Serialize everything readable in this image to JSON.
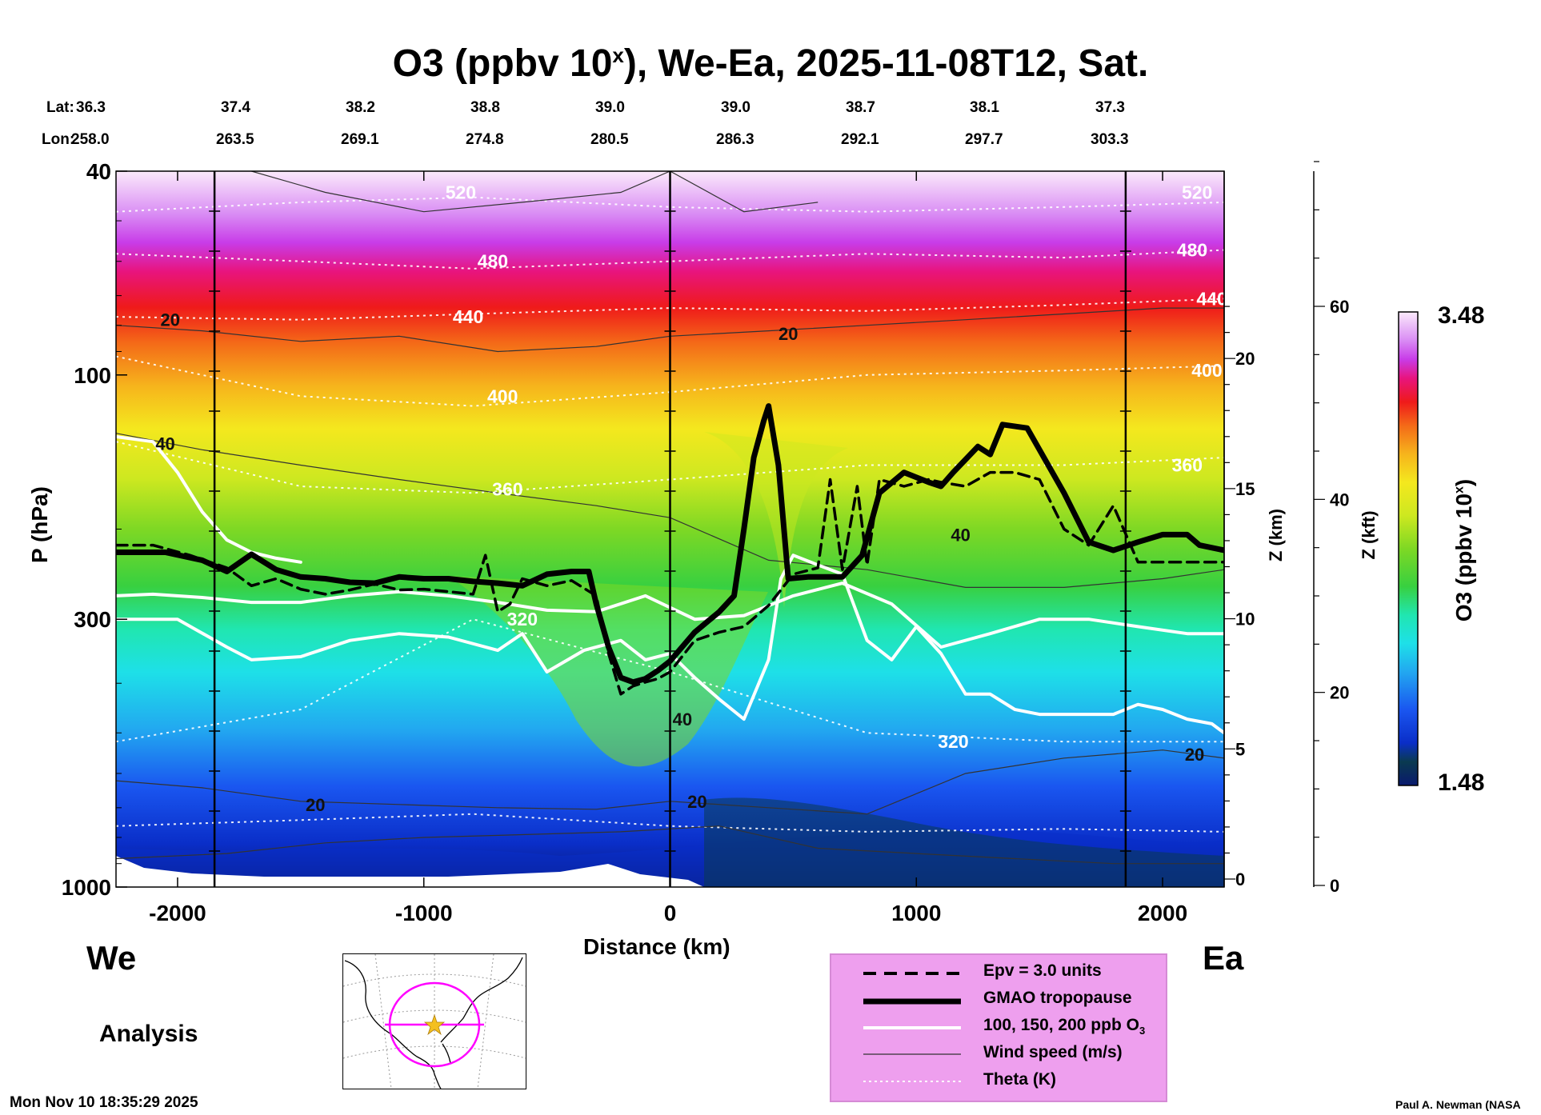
{
  "chart_data": {
    "type": "heatmap",
    "title": "O3 (ppbv 10",
    "title_sup": "x",
    "title_rest": "), We-Ea, 2025-11-08T12, Sat.",
    "xlabel": "Distance (km)",
    "ylabel": "P (hPa)",
    "y2label": "Z (km)",
    "y3label": "Z (kft)",
    "colorbar_label": "O3 (ppbv 10",
    "colorbar_label_sup": "x",
    "colorbar_label_end": ")",
    "colorbar_range": [
      1.48,
      3.48
    ],
    "colorbar_max_label": "3.48",
    "colorbar_min_label": "1.48",
    "xlim": [
      -2250,
      2250
    ],
    "ylim": [
      1000,
      40
    ],
    "x_ticks": [
      "-2000",
      "-1000",
      "0",
      "1000",
      "2000"
    ],
    "x_tick_values": [
      -2000,
      -1000,
      0,
      1000,
      2000
    ],
    "p_ticks": [
      "40",
      "100",
      "300",
      "1000"
    ],
    "p_tick_values": [
      40,
      100,
      300,
      1000
    ],
    "z_km_ticks": [
      "0",
      "5",
      "10",
      "15",
      "20"
    ],
    "z_km_values": [
      0,
      5,
      10,
      15,
      20
    ],
    "z_kft_ticks": [
      "0",
      "20",
      "40",
      "60"
    ],
    "z_kft_values": [
      0,
      20,
      40,
      60
    ],
    "lat_label": "Lat:",
    "lon_label": "Lon:",
    "lat": [
      "36.3",
      "37.4",
      "38.2",
      "38.8",
      "39.0",
      "39.0",
      "38.7",
      "38.1",
      "37.3"
    ],
    "lon": [
      "258.0",
      "263.5",
      "269.1",
      "274.8",
      "280.5",
      "286.3",
      "292.1",
      "297.7",
      "303.3"
    ],
    "vertical_markers_km": [
      -1850,
      0,
      1850
    ],
    "theta_labels": [
      {
        "text": "520",
        "x": -850,
        "p": 44
      },
      {
        "text": "480",
        "x": -720,
        "p": 60
      },
      {
        "text": "440",
        "x": -820,
        "p": 77
      },
      {
        "text": "400",
        "x": -680,
        "p": 110
      },
      {
        "text": "360",
        "x": -660,
        "p": 167
      },
      {
        "text": "320",
        "x": -600,
        "p": 300
      },
      {
        "text": "320",
        "x": 1150,
        "p": 520
      },
      {
        "text": "360",
        "x": 2100,
        "p": 150
      },
      {
        "text": "400",
        "x": 2180,
        "p": 98
      },
      {
        "text": "440",
        "x": 2200,
        "p": 71
      },
      {
        "text": "480",
        "x": 2120,
        "p": 57
      },
      {
        "text": "520",
        "x": 2140,
        "p": 44
      }
    ],
    "wind_labels": [
      {
        "text": "20",
        "x": -2030,
        "p": 78
      },
      {
        "text": "40",
        "x": -2050,
        "p": 136
      },
      {
        "text": "20",
        "x": 480,
        "p": 83
      },
      {
        "text": "40",
        "x": 1180,
        "p": 205
      },
      {
        "text": "40",
        "x": 50,
        "p": 470
      },
      {
        "text": "20",
        "x": -1440,
        "p": 690
      },
      {
        "text": "20",
        "x": 110,
        "p": 680
      },
      {
        "text": "20",
        "x": 2130,
        "p": 550
      }
    ],
    "series": [
      {
        "name": "GMAO tropopause",
        "x": [
          -2250,
          -2050,
          -1900,
          -1800,
          -1700,
          -1600,
          -1500,
          -1400,
          -1300,
          -1200,
          -1100,
          -1000,
          -900,
          -800,
          -700,
          -600,
          -500,
          -400,
          -330,
          -300,
          -250,
          -200,
          -150,
          -100,
          -50,
          0,
          100,
          200,
          260,
          300,
          340,
          380,
          400,
          440,
          480,
          560,
          700,
          780,
          850,
          950,
          1050,
          1100,
          1150,
          1250,
          1300,
          1350,
          1450,
          1600,
          1700,
          1800,
          1900,
          2000,
          2100,
          2150,
          2250
        ],
        "p": [
          222,
          222,
          230,
          242,
          224,
          240,
          248,
          250,
          254,
          255,
          248,
          250,
          250,
          253,
          255,
          258,
          245,
          242,
          242,
          280,
          340,
          390,
          398,
          392,
          378,
          362,
          318,
          290,
          270,
          200,
          145,
          123,
          115,
          150,
          250,
          248,
          248,
          225,
          170,
          155,
          162,
          165,
          155,
          138,
          143,
          125,
          127,
          170,
          212,
          220,
          212,
          205,
          205,
          215,
          220
        ]
      },
      {
        "name": "Epv = 3.0 units",
        "x": [
          -2250,
          -2100,
          -1950,
          -1800,
          -1700,
          -1600,
          -1500,
          -1400,
          -1300,
          -1200,
          -1100,
          -1000,
          -900,
          -800,
          -750,
          -700,
          -650,
          -600,
          -500,
          -400,
          -300,
          -250,
          -200,
          -150,
          -100,
          -50,
          0,
          100,
          200,
          300,
          400,
          500,
          600,
          650,
          700,
          760,
          800,
          850,
          950,
          1050,
          1100,
          1200,
          1300,
          1400,
          1500,
          1600,
          1700,
          1800,
          1900,
          2000,
          2100,
          2250
        ],
        "p": [
          215,
          215,
          225,
          238,
          258,
          250,
          262,
          268,
          263,
          256,
          263,
          262,
          265,
          268,
          225,
          290,
          280,
          250,
          258,
          252,
          270,
          350,
          420,
          405,
          398,
          392,
          380,
          330,
          318,
          310,
          282,
          245,
          238,
          160,
          240,
          165,
          235,
          160,
          165,
          160,
          162,
          165,
          155,
          155,
          160,
          200,
          215,
          180,
          232,
          232,
          232,
          232
        ]
      },
      {
        "name": "100, 150, 200 ppb O3",
        "x": [
          -2250,
          -2100,
          -1900,
          -1700,
          -1500,
          -1300,
          -1100,
          -900,
          -700,
          -500,
          -300,
          -100,
          100,
          300,
          500,
          700,
          900,
          1100,
          1300,
          1500,
          1700,
          1900,
          2100,
          2250
        ],
        "p": [
          270,
          268,
          272,
          278,
          278,
          270,
          265,
          270,
          278,
          288,
          290,
          270,
          300,
          295,
          270,
          255,
          280,
          340,
          320,
          300,
          300,
          310,
          320,
          320
        ]
      },
      {
        "name": "100, 150, 200 ppb O3 (upper)",
        "x": [
          -2250,
          -2100,
          -2000,
          -1900,
          -1800,
          -1700,
          -1600,
          -1500
        ],
        "p": [
          132,
          135,
          155,
          185,
          210,
          222,
          228,
          232
        ]
      },
      {
        "name": "100, 150, 200 ppb O3 (mid)",
        "x": [
          -2250,
          -2000,
          -1800,
          -1700,
          -1500,
          -1300,
          -1100,
          -900,
          -700,
          -600,
          -500,
          -350,
          -200,
          -100,
          0,
          100,
          200,
          300,
          400,
          450,
          500,
          600,
          700,
          800,
          900,
          1000,
          1100,
          1200,
          1300,
          1400,
          1500,
          1600,
          1700,
          1800,
          1900,
          2000,
          2100,
          2200,
          2250
        ],
        "p": [
          300,
          300,
          340,
          360,
          355,
          330,
          320,
          325,
          345,
          320,
          380,
          345,
          330,
          360,
          350,
          390,
          430,
          470,
          360,
          250,
          225,
          235,
          245,
          330,
          360,
          310,
          350,
          420,
          420,
          450,
          460,
          460,
          460,
          460,
          440,
          450,
          470,
          480,
          500
        ]
      },
      {
        "name": "Wind speed (m/s)"
      },
      {
        "name": "Theta (K)",
        "levels": [
          520,
          480,
          440,
          400,
          360,
          320
        ]
      }
    ],
    "colors": {
      "tropopause": "#000000",
      "ozone_contour": "#ffffff",
      "theta": "#ffffff",
      "wind": "#333333",
      "legend_bg": "#ee9fee",
      "map_circle": "#ff00ff",
      "star": "#f4c01e"
    }
  },
  "labels": {
    "west": "We",
    "east": "Ea",
    "analysis": "Analysis",
    "timestamp": "Mon Nov 10 18:35:29 2025",
    "credit": "Paul A. Newman (NASA"
  },
  "legend": {
    "epv": "Epv = 3.0 units",
    "tropopause": "GMAO tropopause",
    "ozone_prefix": "100, 150, 200 ppb O",
    "ozone_sub": "3",
    "wind": "Wind speed (m/s)",
    "theta": "Theta (K)"
  }
}
